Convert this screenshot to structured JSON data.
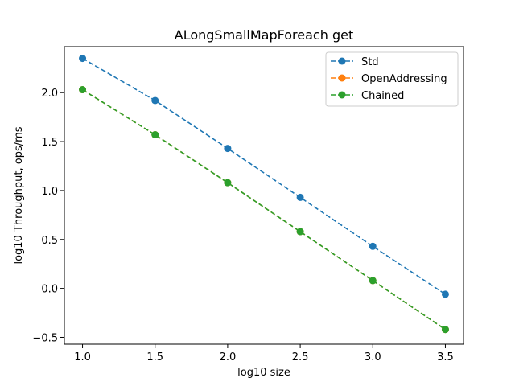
{
  "chart_data": {
    "type": "line",
    "title": "ALongSmallMapForeach get",
    "xlabel": "log10 size",
    "ylabel": "log10 Throughput, ops/ms",
    "x": [
      1.0,
      1.5,
      2.0,
      2.5,
      3.0,
      3.5
    ],
    "xlim": [
      0.875,
      3.625
    ],
    "ylim": [
      -0.57,
      2.47
    ],
    "xticks": [
      "1.0",
      "1.5",
      "2.0",
      "2.5",
      "3.0",
      "3.5"
    ],
    "yticks": [
      "−0.5",
      "0.0",
      "0.5",
      "1.0",
      "1.5",
      "2.0"
    ],
    "ytick_values": [
      -0.5,
      0.0,
      0.5,
      1.0,
      1.5,
      2.0
    ],
    "xtick_values": [
      1.0,
      1.5,
      2.0,
      2.5,
      3.0,
      3.5
    ],
    "grid": false,
    "legend_position": "top-right",
    "line_style": "dashed",
    "marker": "circle",
    "series": [
      {
        "name": "Std",
        "color": "#1f77b4",
        "values": [
          2.35,
          1.92,
          1.43,
          0.93,
          0.43,
          -0.06
        ]
      },
      {
        "name": "OpenAddressing",
        "color": "#ff7f0e",
        "values": [
          2.03,
          1.57,
          1.08,
          0.58,
          0.08,
          -0.42
        ]
      },
      {
        "name": "Chained",
        "color": "#2ca02c",
        "values": [
          2.03,
          1.57,
          1.08,
          0.58,
          0.08,
          -0.42
        ]
      }
    ]
  }
}
